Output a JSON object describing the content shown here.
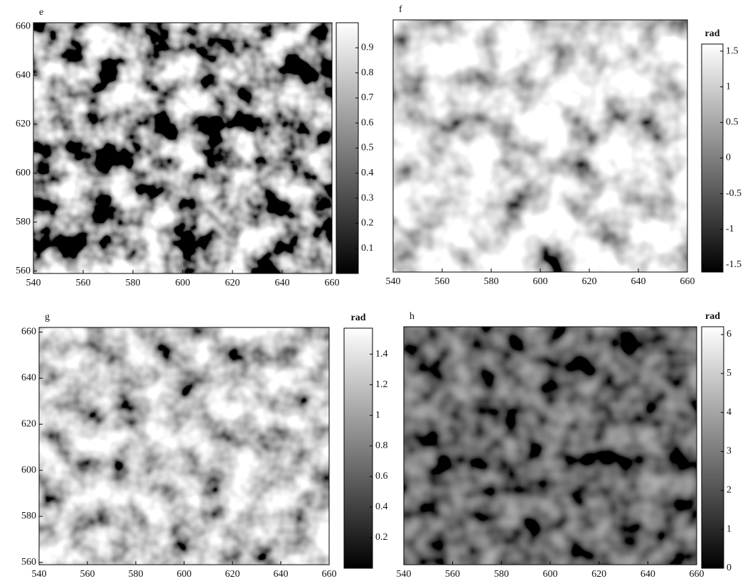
{
  "chart_data": [
    {
      "type": "heatmap",
      "title": "e",
      "xlim": [
        540,
        660
      ],
      "ylim": [
        559,
        661.5
      ],
      "xticks": [
        540,
        560,
        580,
        600,
        620,
        640,
        660
      ],
      "yticks": [
        560,
        580,
        600,
        620,
        640,
        660
      ],
      "clim": [
        0,
        1
      ],
      "cticks": [
        0.1,
        0.2,
        0.3,
        0.4,
        0.5,
        0.6,
        0.7,
        0.8,
        0.9
      ]
    },
    {
      "type": "heatmap",
      "title": "f",
      "xlim": [
        540,
        660
      ],
      "ylim": [
        559,
        662
      ],
      "xticks": [
        540,
        560,
        580,
        600,
        620,
        640,
        660
      ],
      "yticks": [],
      "clim": [
        -1.6,
        1.6
      ],
      "cticks": [
        -1.5,
        -1,
        -0.5,
        0,
        0.5,
        1,
        1.5
      ],
      "colorbar_label": "rad"
    },
    {
      "type": "heatmap",
      "title": "g",
      "xlim": [
        540,
        660
      ],
      "ylim": [
        559,
        662
      ],
      "xticks": [
        540,
        560,
        580,
        600,
        620,
        640,
        660
      ],
      "yticks": [
        560,
        580,
        600,
        620,
        640,
        660
      ],
      "clim": [
        0,
        1.57
      ],
      "cticks": [
        0.2,
        0.4,
        0.6,
        0.8,
        1,
        1.2,
        1.4
      ],
      "colorbar_label": "rad"
    },
    {
      "type": "heatmap",
      "title": "h",
      "xlim": [
        540,
        660
      ],
      "ylim": [
        559,
        661
      ],
      "xticks": [
        540,
        560,
        580,
        600,
        620,
        640,
        660
      ],
      "yticks": [],
      "clim": [
        0,
        6.2
      ],
      "cticks": [
        0,
        1,
        2,
        3,
        4,
        5,
        6
      ],
      "colorbar_label": "rad"
    }
  ]
}
